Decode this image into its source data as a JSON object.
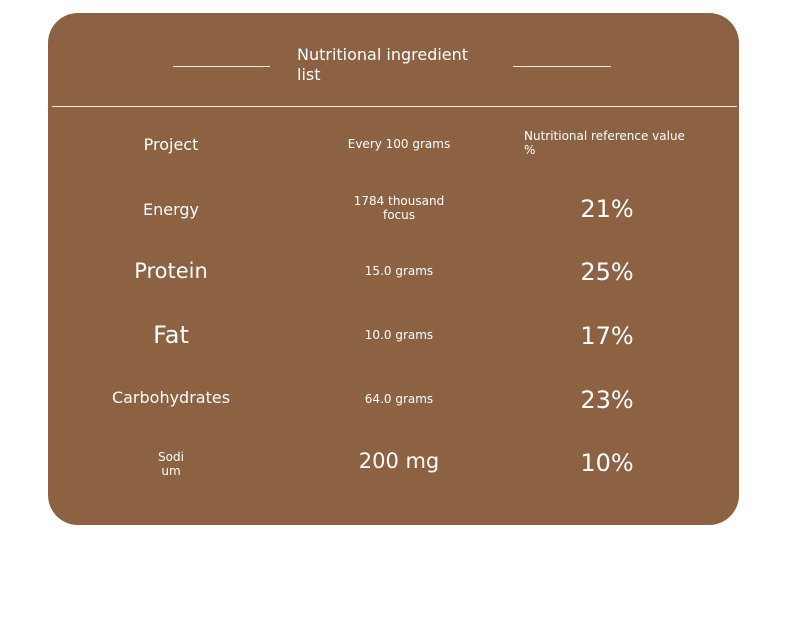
{
  "title": "Nutritional ingredient\nlist",
  "headers": {
    "project": "Project",
    "per_100g": "Every 100 grams",
    "nrv": "Nutritional reference value\n%"
  },
  "rows": [
    {
      "name": "Energy",
      "amount": "1784 thousand\nfocus",
      "nrv": "21%"
    },
    {
      "name": "Protein",
      "amount": "15.0 grams",
      "nrv": "25%"
    },
    {
      "name": "Fat",
      "amount": "10.0 grams",
      "nrv": "17%"
    },
    {
      "name": "Carbohydrates",
      "amount": "64.0 grams",
      "nrv": "23%"
    },
    {
      "name": "Sodi\num",
      "amount": "200 mg",
      "nrv": "10%"
    }
  ]
}
